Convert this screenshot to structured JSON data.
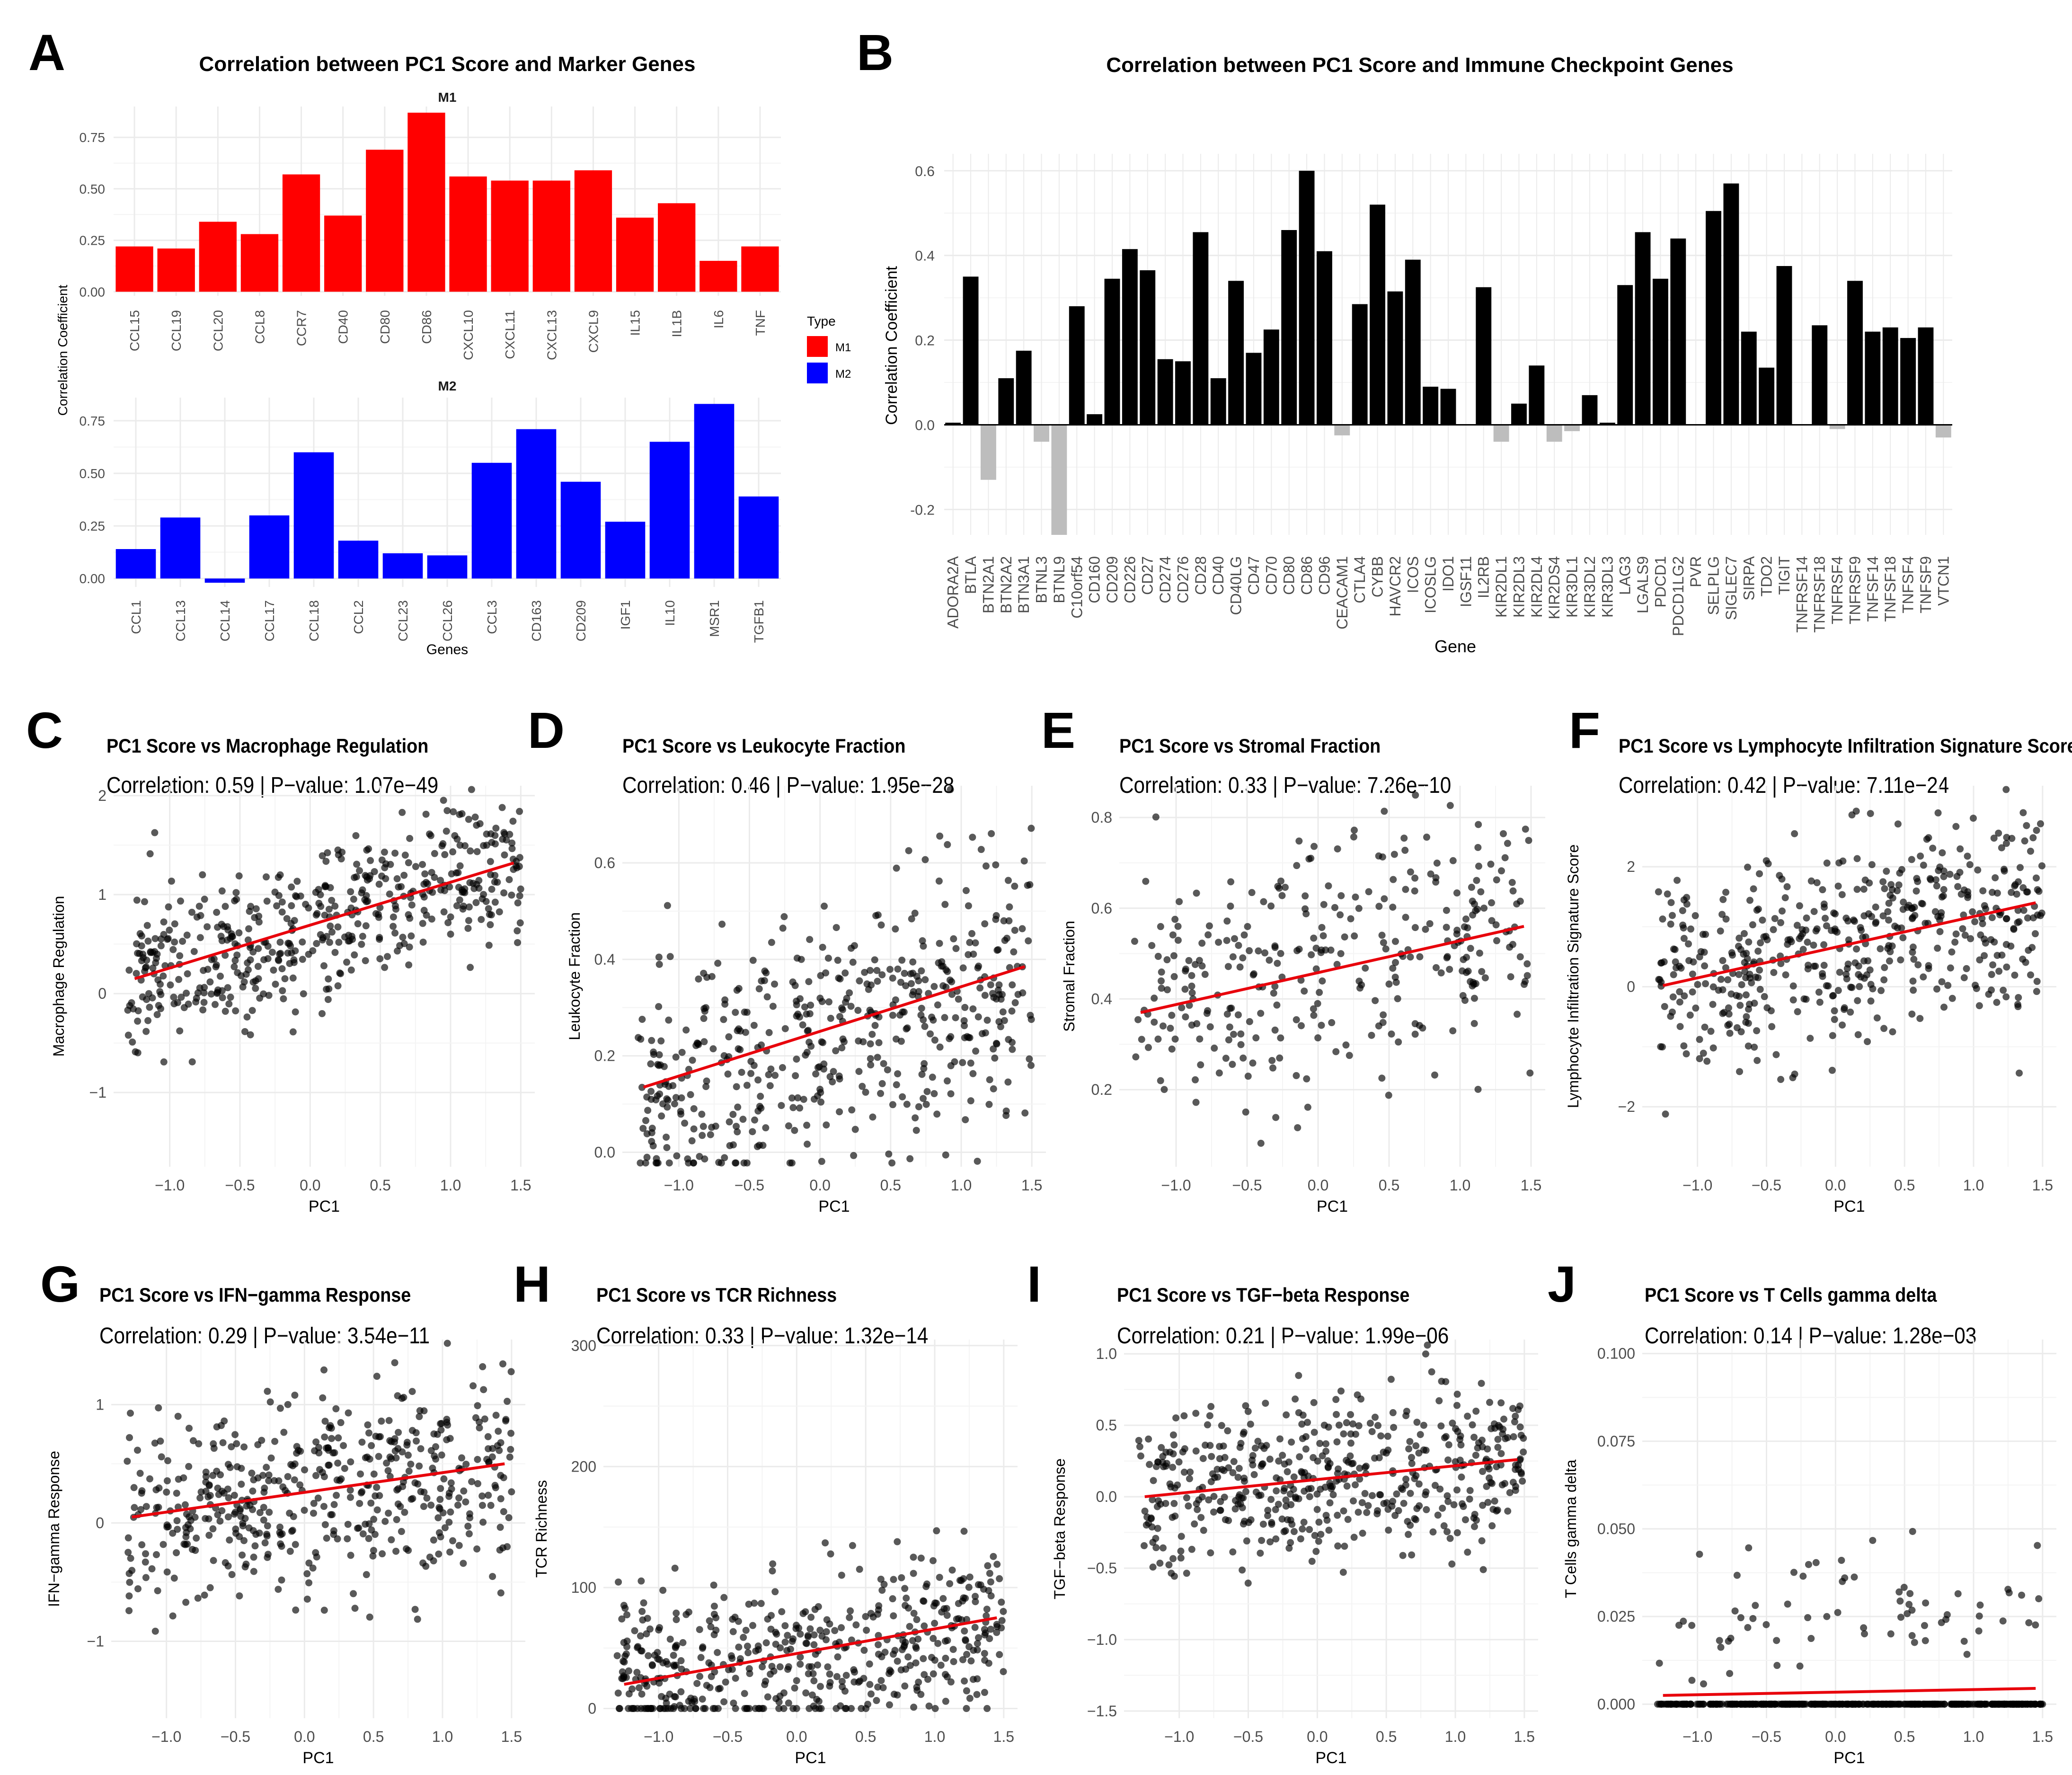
{
  "chart_data": [
    {
      "panel": "A",
      "type": "bar",
      "title": "Correlation between PC1 Score and Marker Genes",
      "xlabel": "Genes",
      "ylabel": "Correlation Coefficient",
      "legend": {
        "title": "Type",
        "entries": [
          {
            "name": "M1",
            "color": "#ff0000"
          },
          {
            "name": "M2",
            "color": "#0000ff"
          }
        ],
        "position": "right"
      },
      "facets": [
        {
          "name": "M1",
          "color": "#ff0000",
          "ylim": [
            -0.02,
            0.9
          ],
          "yticks": [
            0.0,
            0.25,
            0.5,
            0.75
          ],
          "ytick_labels": [
            "0.00",
            "0.25",
            "0.50",
            "0.75"
          ],
          "categories": [
            "CCL15",
            "CCL19",
            "CCL20",
            "CCL8",
            "CCR7",
            "CD40",
            "CD80",
            "CD86",
            "CXCL10",
            "CXCL11",
            "CXCL13",
            "CXCL9",
            "IL15",
            "IL1B",
            "IL6",
            "TNF"
          ],
          "values": [
            0.22,
            0.21,
            0.34,
            0.28,
            0.57,
            0.37,
            0.69,
            0.87,
            0.56,
            0.54,
            0.54,
            0.59,
            0.36,
            0.43,
            0.15,
            0.22
          ]
        },
        {
          "name": "M2",
          "color": "#0000ff",
          "ylim": [
            -0.04,
            0.86
          ],
          "yticks": [
            0.0,
            0.25,
            0.5,
            0.75
          ],
          "ytick_labels": [
            "0.00",
            "0.25",
            "0.50",
            "0.75"
          ],
          "categories": [
            "CCL1",
            "CCL13",
            "CCL14",
            "CCL17",
            "CCL18",
            "CCL2",
            "CCL23",
            "CCL26",
            "CCL3",
            "CD163",
            "CD209",
            "IGF1",
            "IL10",
            "MSR1",
            "TGFB1"
          ],
          "values": [
            0.14,
            0.29,
            -0.02,
            0.3,
            0.6,
            0.18,
            0.12,
            0.11,
            0.55,
            0.71,
            0.46,
            0.27,
            0.65,
            0.83,
            0.39
          ]
        }
      ]
    },
    {
      "panel": "B",
      "type": "bar",
      "title": "Correlation between PC1 Score and Immune Checkpoint Genes",
      "xlabel": "Gene",
      "ylabel": "Correlation Coefficient",
      "ylim": [
        -0.26,
        0.64
      ],
      "yticks": [
        -0.2,
        0.0,
        0.2,
        0.4,
        0.6
      ],
      "ytick_labels": [
        "-0.2",
        "0.0",
        "0.2",
        "0.4",
        "0.6"
      ],
      "colors": {
        "positive": "#000000",
        "negative": "#bdbdbd"
      },
      "categories": [
        "ADORA2A",
        "BTLA",
        "BTN2A1",
        "BTN2A2",
        "BTN3A1",
        "BTNL3",
        "BTNL9",
        "C10orf54",
        "CD160",
        "CD209",
        "CD226",
        "CD27",
        "CD274",
        "CD276",
        "CD28",
        "CD40",
        "CD40LG",
        "CD47",
        "CD70",
        "CD80",
        "CD86",
        "CD96",
        "CEACAM1",
        "CTLA4",
        "CYBB",
        "HAVCR2",
        "ICOS",
        "ICOSLG",
        "IDO1",
        "IGSF11",
        "IL2RB",
        "KIR2DL1",
        "KIR2DL3",
        "KIR2DL4",
        "KIR2DS4",
        "KIR3DL1",
        "KIR3DL2",
        "KIR3DL3",
        "LAG3",
        "LGALS9",
        "PDCD1",
        "PDCD1LG2",
        "PVR",
        "SELPLG",
        "SIGLEC7",
        "SIRPA",
        "TDO2",
        "TIGIT",
        "TNFRSF14",
        "TNFRSF18",
        "TNFRSF4",
        "TNFRSF9",
        "TNFSF14",
        "TNFSF18",
        "TNFSF4",
        "TNFSF9",
        "VTCN1"
      ],
      "values": [
        0.005,
        0.35,
        -0.13,
        0.11,
        0.175,
        -0.04,
        -0.26,
        0.28,
        0.025,
        0.345,
        0.415,
        0.365,
        0.155,
        0.15,
        0.455,
        0.11,
        0.34,
        0.17,
        0.225,
        0.46,
        0.6,
        0.41,
        -0.025,
        0.285,
        0.52,
        0.315,
        0.39,
        0.09,
        0.085,
        0.0,
        0.325,
        -0.04,
        0.05,
        0.14,
        -0.04,
        -0.015,
        0.07,
        0.005,
        0.33,
        0.455,
        0.345,
        0.44,
        0.0,
        0.505,
        0.57,
        0.22,
        0.135,
        0.375,
        0.0,
        0.235,
        -0.01,
        0.34,
        0.22,
        0.23,
        0.205,
        0.23,
        -0.03
      ]
    },
    {
      "panel": "C",
      "type": "scatter",
      "title": "PC1 Score vs Macrophage Regulation",
      "subtitle": "Correlation: 0.59 | P−value: 1.07e−49",
      "xlabel": "PC1",
      "ylabel": "Macrophage Regulation",
      "xlim": [
        -1.4,
        1.6
      ],
      "ylim": [
        -1.75,
        2.1
      ],
      "xticks": [
        -1.0,
        -0.5,
        0.0,
        0.5,
        1.0,
        1.5
      ],
      "xtick_labels": [
        "−1.0",
        "−0.5",
        "0.0",
        "0.5",
        "1.0",
        "1.5"
      ],
      "yticks": [
        -1,
        0,
        1,
        2
      ],
      "ytick_labels": [
        "−1",
        "0",
        "1",
        "2"
      ],
      "points": {
        "n": 500,
        "x_range": [
          -1.3,
          1.5
        ],
        "intercept": 0.68,
        "slope": 0.43,
        "noise_sd": 0.4,
        "seed": 11
      },
      "fit": {
        "x": [
          -1.25,
          1.45
        ],
        "y": [
          0.15,
          1.32
        ]
      }
    },
    {
      "panel": "D",
      "type": "scatter",
      "title": "PC1 Score vs Leukocyte Fraction",
      "subtitle": "Correlation: 0.46 | P−value: 1.95e−28",
      "xlabel": "PC1",
      "ylabel": "Leukocyte Fraction",
      "xlim": [
        -1.4,
        1.6
      ],
      "ylim": [
        -0.03,
        0.76
      ],
      "xticks": [
        -1.0,
        -0.5,
        0.0,
        0.5,
        1.0,
        1.5
      ],
      "xtick_labels": [
        "−1.0",
        "−0.5",
        "0.0",
        "0.5",
        "1.0",
        "1.5"
      ],
      "yticks": [
        0.0,
        0.2,
        0.4,
        0.6
      ],
      "ytick_labels": [
        "0.0",
        "0.2",
        "0.4",
        "0.6"
      ],
      "points": {
        "n": 500,
        "x_range": [
          -1.3,
          1.5
        ],
        "intercept": 0.24,
        "slope": 0.092,
        "noise_sd": 0.13,
        "seed": 23
      },
      "fit": {
        "x": [
          -1.25,
          1.45
        ],
        "y": [
          0.135,
          0.385
        ]
      }
    },
    {
      "panel": "E",
      "type": "scatter",
      "title": "PC1 Score vs Stromal Fraction",
      "subtitle": "Correlation: 0.33 | P−value: 7.26e−10",
      "xlabel": "PC1",
      "ylabel": "Stromal Fraction",
      "xlim": [
        -1.4,
        1.6
      ],
      "ylim": [
        0.03,
        0.87
      ],
      "xticks": [
        -1.0,
        -0.5,
        0.0,
        0.5,
        1.0,
        1.5
      ],
      "xtick_labels": [
        "−1.0",
        "−0.5",
        "0.0",
        "0.5",
        "1.0",
        "1.5"
      ],
      "yticks": [
        0.2,
        0.4,
        0.6,
        0.8
      ],
      "ytick_labels": [
        "0.2",
        "0.4",
        "0.6",
        "0.8"
      ],
      "points": {
        "n": 320,
        "x_range": [
          -1.3,
          1.5
        ],
        "intercept": 0.46,
        "slope": 0.072,
        "noise_sd": 0.14,
        "seed": 37
      },
      "fit": {
        "x": [
          -1.25,
          1.45
        ],
        "y": [
          0.37,
          0.56
        ]
      }
    },
    {
      "panel": "F",
      "type": "scatter",
      "title": "PC1 Score vs Lymphocyte Infiltration Signature Score",
      "subtitle": "Correlation: 0.42 | P−value: 7.11e−24",
      "xlabel": "PC1",
      "ylabel": "Lymphocyte Infiltration Signature Score",
      "xlim": [
        -1.4,
        1.6
      ],
      "ylim": [
        -3.0,
        3.35
      ],
      "xticks": [
        -1.0,
        -0.5,
        0.0,
        0.5,
        1.0,
        1.5
      ],
      "xtick_labels": [
        "−1.0",
        "−0.5",
        "0.0",
        "0.5",
        "1.0",
        "1.5"
      ],
      "yticks": [
        -2,
        0,
        2
      ],
      "ytick_labels": [
        "−2",
        "0",
        "2"
      ],
      "points": {
        "n": 500,
        "x_range": [
          -1.3,
          1.5
        ],
        "intercept": 0.63,
        "slope": 0.5,
        "noise_sd": 0.85,
        "seed": 41
      },
      "fit": {
        "x": [
          -1.25,
          1.45
        ],
        "y": [
          0.02,
          1.4
        ]
      }
    },
    {
      "panel": "G",
      "type": "scatter",
      "title": "PC1 Score vs IFN−gamma Response",
      "subtitle": "Correlation: 0.29 | P−value: 3.54e−11",
      "xlabel": "PC1",
      "ylabel": "IFN−gamma Response",
      "xlim": [
        -1.4,
        1.6
      ],
      "ylim": [
        -1.65,
        1.55
      ],
      "xticks": [
        -1.0,
        -0.5,
        0.0,
        0.5,
        1.0,
        1.5
      ],
      "xtick_labels": [
        "−1.0",
        "−0.5",
        "0.0",
        "0.5",
        "1.0",
        "1.5"
      ],
      "yticks": [
        -1,
        0,
        1
      ],
      "ytick_labels": [
        "−1",
        "0",
        "1"
      ],
      "points": {
        "n": 500,
        "x_range": [
          -1.3,
          1.5
        ],
        "intercept": 0.24,
        "slope": 0.17,
        "noise_sd": 0.42,
        "seed": 53
      },
      "fit": {
        "x": [
          -1.25,
          1.45
        ],
        "y": [
          0.05,
          0.5
        ]
      }
    },
    {
      "panel": "H",
      "type": "scatter",
      "title": "PC1 Score vs TCR Richness",
      "subtitle": "Correlation: 0.33 | P−value: 1.32e−14",
      "xlabel": "PC1",
      "ylabel": "TCR Richness",
      "xlim": [
        -1.4,
        1.6
      ],
      "ylim": [
        -8,
        305
      ],
      "xticks": [
        -1.0,
        -0.5,
        0.0,
        0.5,
        1.0,
        1.5
      ],
      "xtick_labels": [
        "−1.0",
        "−0.5",
        "0.0",
        "0.5",
        "1.0",
        "1.5"
      ],
      "yticks": [
        0,
        100,
        200,
        300
      ],
      "ytick_labels": [
        "0",
        "100",
        "200",
        "300"
      ],
      "points": {
        "n": 500,
        "x_range": [
          -1.3,
          1.5
        ],
        "intercept": 42,
        "slope": 18,
        "noise_sd": 32,
        "min": 0,
        "seed": 67
      },
      "fit": {
        "x": [
          -1.25,
          1.45
        ],
        "y": [
          20,
          75
        ]
      }
    },
    {
      "panel": "I",
      "type": "scatter",
      "title": "PC1 Score vs TGF−beta Response",
      "subtitle": "Correlation: 0.21 | P−value: 1.99e−06",
      "xlabel": "PC1",
      "ylabel": "TGF−beta Response",
      "xlim": [
        -1.4,
        1.6
      ],
      "ylim": [
        -1.55,
        1.1
      ],
      "xticks": [
        -1.0,
        -0.5,
        0.0,
        0.5,
        1.0,
        1.5
      ],
      "xtick_labels": [
        "−1.0",
        "−0.5",
        "0.0",
        "0.5",
        "1.0",
        "1.5"
      ],
      "yticks": [
        -1.5,
        -1.0,
        -0.5,
        0.0,
        0.5,
        1.0
      ],
      "ytick_labels": [
        "−1.5",
        "−1.0",
        "−0.5",
        "0.0",
        "0.5",
        "1.0"
      ],
      "points": {
        "n": 500,
        "x_range": [
          -1.3,
          1.5
        ],
        "intercept": 0.12,
        "slope": 0.09,
        "noise_sd": 0.28,
        "seed": 79
      },
      "fit": {
        "x": [
          -1.25,
          1.45
        ],
        "y": [
          0.0,
          0.26
        ]
      }
    },
    {
      "panel": "J",
      "type": "scatter",
      "title": "PC1 Score vs T Cells gamma delta",
      "subtitle": "Correlation: 0.14 | P−value: 1.28e−03",
      "xlabel": "PC1",
      "ylabel": "T Cells gamma delta",
      "xlim": [
        -1.4,
        1.6
      ],
      "ylim": [
        -0.004,
        0.104
      ],
      "xticks": [
        -1.0,
        -0.5,
        0.0,
        0.5,
        1.0,
        1.5
      ],
      "xtick_labels": [
        "−1.0",
        "−0.5",
        "0.0",
        "0.5",
        "1.0",
        "1.5"
      ],
      "yticks": [
        0.0,
        0.025,
        0.05,
        0.075,
        0.1
      ],
      "ytick_labels": [
        "0.000",
        "0.025",
        "0.050",
        "0.075",
        "0.100"
      ],
      "points": {
        "n": 500,
        "x_range": [
          -1.3,
          1.5
        ],
        "zero_fraction": 0.85,
        "intercept": 0.02,
        "slope": 0.0,
        "noise_sd": 0.014,
        "min": 0.0,
        "seed": 97
      },
      "fit": {
        "x": [
          -1.25,
          1.45
        ],
        "y": [
          0.0025,
          0.0045
        ]
      }
    }
  ]
}
